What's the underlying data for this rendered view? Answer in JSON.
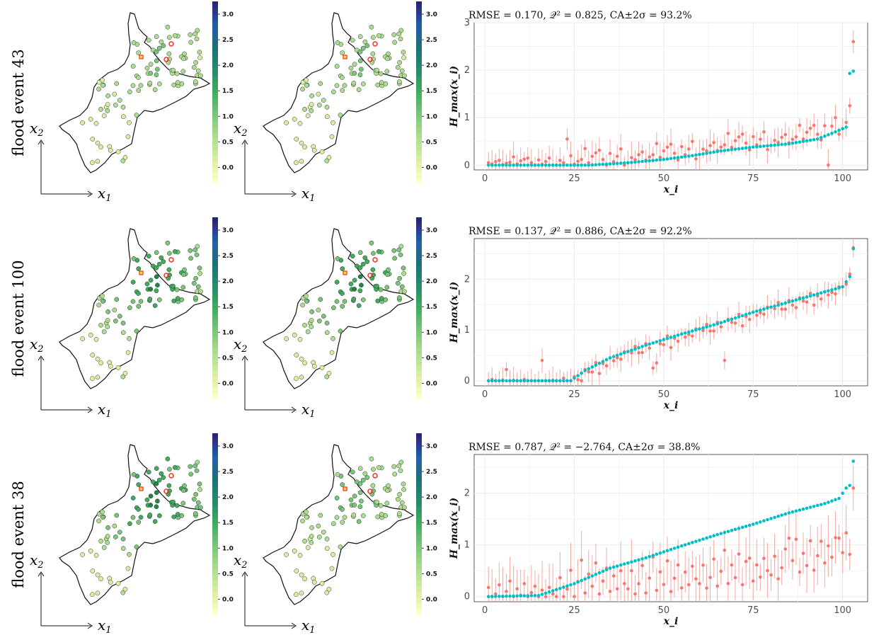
{
  "colors": {
    "predicted": "#F8766D",
    "observed": "#00BFC4",
    "predicted_bar": "#f4aaa4",
    "colormap": [
      "#ffffcc",
      "#d9f0a3",
      "#addd8e",
      "#78c679",
      "#41ab5d",
      "#238443",
      "#1d6f7a",
      "#225ea8",
      "#253494",
      "#2c1f6e"
    ]
  },
  "rows": [
    {
      "label": "flood event 43"
    },
    {
      "label": "flood event 100"
    },
    {
      "label": "flood event 38"
    }
  ],
  "maps": {
    "x_axis_label": "x",
    "x_axis_sub": "1",
    "y_axis_label": "x",
    "y_axis_sub": "2",
    "colorbar_ticks": [
      "0.0",
      "0.5",
      "1.0",
      "1.5",
      "2.0",
      "2.5",
      "3.0"
    ],
    "colorbar_range": [
      -0.3,
      3.25
    ]
  },
  "chart_data": [
    {
      "type": "scatter",
      "title": "RMSE = 0.170,  𝒬² = 0.825,  CA±2σ = 93.2%",
      "xlabel": "x_i",
      "ylabel": "H_max(x_i)",
      "xlim": [
        -3,
        107
      ],
      "ylim": [
        -0.1,
        3.0
      ],
      "xticks": [
        0,
        25,
        50,
        75,
        100
      ],
      "yticks": [
        0,
        1,
        2,
        3
      ],
      "grid": true,
      "n": 103,
      "observed_knots": [
        [
          1,
          0
        ],
        [
          29,
          0
        ],
        [
          40,
          0.05
        ],
        [
          50,
          0.12
        ],
        [
          58,
          0.2
        ],
        [
          66,
          0.3
        ],
        [
          75,
          0.38
        ],
        [
          85,
          0.45
        ],
        [
          93,
          0.55
        ],
        [
          98,
          0.7
        ],
        [
          101,
          0.8
        ],
        [
          102,
          1.93
        ],
        [
          103,
          1.98
        ]
      ],
      "predicted_offsets": [
        0.0,
        0.1,
        0.05,
        0.15,
        0.2,
        0.02,
        0.08,
        0.12,
        0.35,
        0.05,
        0.18,
        0.25,
        0.3,
        0.1,
        -0.05,
        0.22,
        0.04,
        0.15,
        0.3,
        -0.08
      ],
      "spike_points": [
        [
          23,
          0.55
        ],
        [
          96,
          0.0
        ],
        [
          102,
          1.25
        ],
        [
          103,
          2.6
        ]
      ],
      "err_base": 0.25
    },
    {
      "type": "scatter",
      "title": "RMSE = 0.137,  𝒬² = 0.886,  CA±2σ = 92.2%",
      "xlabel": "x_i",
      "ylabel": "H_max(x_i)",
      "xlim": [
        -3,
        107
      ],
      "ylim": [
        -0.1,
        2.8
      ],
      "xticks": [
        0,
        25,
        50,
        75,
        100
      ],
      "yticks": [
        0,
        1,
        2
      ],
      "grid": true,
      "n": 103,
      "observed_knots": [
        [
          1,
          0
        ],
        [
          24,
          0.0
        ],
        [
          28,
          0.2
        ],
        [
          35,
          0.45
        ],
        [
          45,
          0.7
        ],
        [
          55,
          0.92
        ],
        [
          65,
          1.12
        ],
        [
          75,
          1.35
        ],
        [
          85,
          1.55
        ],
        [
          95,
          1.75
        ],
        [
          100,
          1.85
        ],
        [
          102,
          2.05
        ],
        [
          103,
          2.6
        ]
      ],
      "predicted_offsets": [
        0.0,
        -0.05,
        0.05,
        -0.1,
        -0.12,
        0.03,
        -0.08,
        -0.15,
        0.02,
        -0.06,
        -0.1,
        0.05,
        -0.2,
        -0.04,
        -0.12,
        0.0,
        -0.08,
        -0.05,
        -0.1,
        0.02
      ],
      "spike_points": [
        [
          6,
          0.22
        ],
        [
          16,
          0.4
        ],
        [
          47,
          0.25
        ],
        [
          48,
          0.35
        ],
        [
          67,
          0.4
        ],
        [
          103,
          2.62
        ]
      ],
      "err_base": 0.2
    },
    {
      "type": "scatter",
      "title": "RMSE = 0.787,  𝒬² = −2.764,  CA±2σ = 38.8%",
      "xlabel": "x_i",
      "ylabel": "H_max(x_i)",
      "xlim": [
        -3,
        107
      ],
      "ylim": [
        -0.1,
        2.75
      ],
      "xticks": [
        0,
        25,
        50,
        75,
        100
      ],
      "yticks": [
        0,
        1,
        2
      ],
      "grid": true,
      "n": 103,
      "observed_knots": [
        [
          1,
          0
        ],
        [
          15,
          0.02
        ],
        [
          25,
          0.25
        ],
        [
          35,
          0.55
        ],
        [
          45,
          0.75
        ],
        [
          55,
          0.98
        ],
        [
          65,
          1.2
        ],
        [
          75,
          1.4
        ],
        [
          85,
          1.62
        ],
        [
          95,
          1.8
        ],
        [
          99,
          1.9
        ],
        [
          101,
          2.1
        ],
        [
          102,
          2.15
        ],
        [
          103,
          2.62
        ]
      ],
      "predicted_knots": [
        [
          1,
          0
        ],
        [
          20,
          0.0
        ],
        [
          30,
          0.15
        ],
        [
          45,
          0.15
        ],
        [
          60,
          0.25
        ],
        [
          75,
          0.35
        ],
        [
          90,
          0.55
        ],
        [
          100,
          0.85
        ],
        [
          103,
          0.95
        ]
      ],
      "predicted_offsets": [
        0.0,
        0.35,
        -0.1,
        0.1,
        0.45,
        -0.08,
        0.2,
        0.6,
        -0.05,
        0.3,
        0.05,
        0.5,
        -0.1,
        0.15,
        0.4,
        -0.05,
        0.25,
        0.0,
        0.35,
        0.1
      ],
      "spike_points": [
        [
          73,
          0.68
        ],
        [
          85,
          1.13
        ],
        [
          99,
          1.13
        ],
        [
          103,
          2.1
        ]
      ],
      "err_base": 0.45
    }
  ]
}
